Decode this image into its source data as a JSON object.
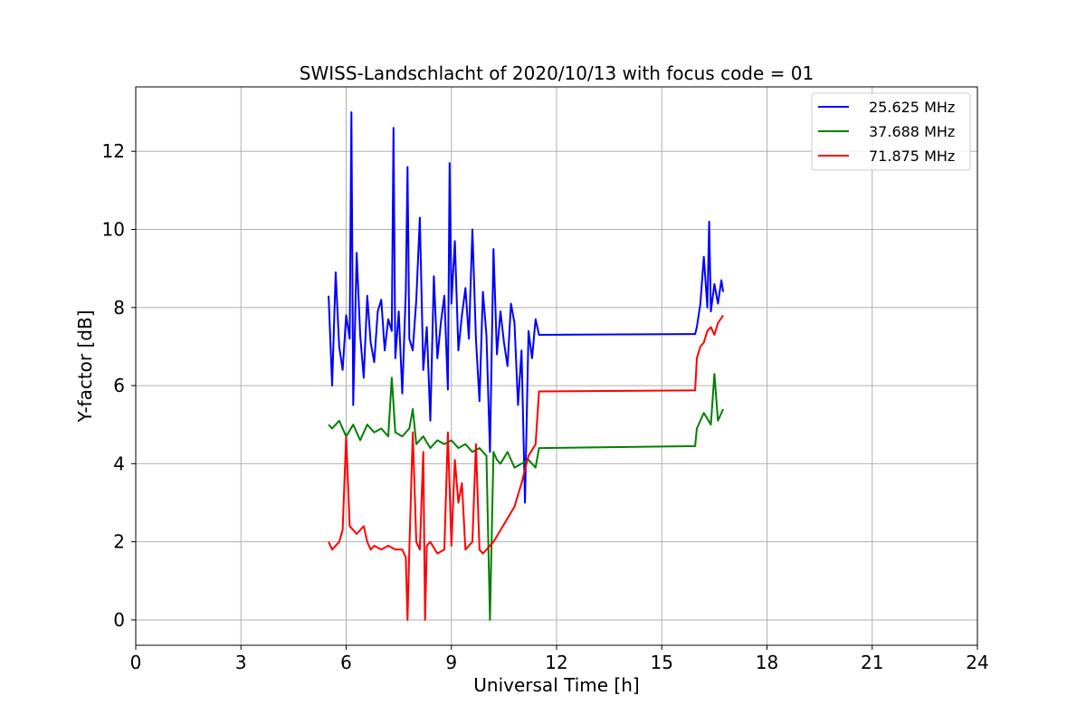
{
  "chart_data": {
    "type": "line",
    "title": "SWISS-Landschlacht of 2020/10/13 with focus code = 01",
    "xlabel": "Universal Time [h]",
    "ylabel": "Y-factor [dB]",
    "xlim": [
      0,
      24
    ],
    "ylim": [
      -0.65,
      13.65
    ],
    "xticks": [
      0,
      3,
      6,
      9,
      12,
      15,
      18,
      21,
      24
    ],
    "xtick_labels": [
      "0",
      "3",
      "6",
      "9",
      "12",
      "15",
      "18",
      "21",
      "24"
    ],
    "yticks": [
      0,
      2,
      4,
      6,
      8,
      10,
      12
    ],
    "ytick_labels": [
      "0",
      "2",
      "4",
      "6",
      "8",
      "10",
      "12"
    ],
    "grid": true,
    "legend_position": "top-right",
    "series": [
      {
        "name": "25.625 MHz",
        "color": "#0000ff",
        "x": [
          5.5,
          5.6,
          5.7,
          5.8,
          5.9,
          6.0,
          6.1,
          6.15,
          6.2,
          6.3,
          6.4,
          6.5,
          6.6,
          6.7,
          6.8,
          6.9,
          7.0,
          7.1,
          7.2,
          7.3,
          7.35,
          7.4,
          7.5,
          7.6,
          7.7,
          7.75,
          7.8,
          7.9,
          8.0,
          8.1,
          8.2,
          8.3,
          8.4,
          8.5,
          8.6,
          8.7,
          8.8,
          8.9,
          8.95,
          9.0,
          9.1,
          9.2,
          9.3,
          9.4,
          9.5,
          9.6,
          9.7,
          9.8,
          9.9,
          10.0,
          10.1,
          10.2,
          10.3,
          10.4,
          10.5,
          10.6,
          10.7,
          10.8,
          10.9,
          11.0,
          11.1,
          11.2,
          11.3,
          11.4,
          11.5,
          15.95,
          16.0,
          16.1,
          16.2,
          16.3,
          16.35,
          16.4,
          16.5,
          16.6,
          16.7,
          16.75
        ],
        "values": [
          8.3,
          6.0,
          8.9,
          7.0,
          6.4,
          7.8,
          7.2,
          13.0,
          5.5,
          9.4,
          7.3,
          6.2,
          8.3,
          7.1,
          6.6,
          7.9,
          8.2,
          6.9,
          7.7,
          7.4,
          12.6,
          6.7,
          7.9,
          5.8,
          8.4,
          11.6,
          7.2,
          6.9,
          8.2,
          10.3,
          6.4,
          7.5,
          5.1,
          8.8,
          6.7,
          7.6,
          8.3,
          5.9,
          11.7,
          8.1,
          9.7,
          6.9,
          7.8,
          8.5,
          7.2,
          10.0,
          7.2,
          5.6,
          8.4,
          7.3,
          4.3,
          9.5,
          6.8,
          7.9,
          7.1,
          6.5,
          8.1,
          7.6,
          5.5,
          6.9,
          3.0,
          7.4,
          6.7,
          7.7,
          7.3,
          7.32,
          7.5,
          8.1,
          9.3,
          8.0,
          10.2,
          7.9,
          8.6,
          8.1,
          8.7,
          8.4
        ]
      },
      {
        "name": "37.688 MHz",
        "color": "#008000",
        "x": [
          5.5,
          5.6,
          5.8,
          6.0,
          6.2,
          6.4,
          6.6,
          6.8,
          7.0,
          7.2,
          7.3,
          7.4,
          7.6,
          7.8,
          7.9,
          8.0,
          8.2,
          8.4,
          8.6,
          8.8,
          9.0,
          9.2,
          9.4,
          9.6,
          9.8,
          10.0,
          10.1,
          10.2,
          10.3,
          10.4,
          10.6,
          10.8,
          11.0,
          11.2,
          11.4,
          11.5,
          15.95,
          16.0,
          16.2,
          16.4,
          16.5,
          16.6,
          16.75
        ],
        "values": [
          5.0,
          4.9,
          5.1,
          4.7,
          5.0,
          4.6,
          5.0,
          4.8,
          4.9,
          4.7,
          6.2,
          4.8,
          4.7,
          4.9,
          5.4,
          4.5,
          4.7,
          4.4,
          4.6,
          4.5,
          4.6,
          4.4,
          4.5,
          4.3,
          4.4,
          4.2,
          0.0,
          4.3,
          4.1,
          4.0,
          4.3,
          3.9,
          4.0,
          4.1,
          3.9,
          4.4,
          4.45,
          4.9,
          5.3,
          5.0,
          6.3,
          5.1,
          5.4
        ]
      },
      {
        "name": "71.875 MHz",
        "color": "#ff0000",
        "x": [
          5.5,
          5.6,
          5.8,
          5.9,
          6.0,
          6.1,
          6.2,
          6.3,
          6.5,
          6.6,
          6.7,
          6.8,
          7.0,
          7.2,
          7.4,
          7.6,
          7.7,
          7.75,
          7.8,
          7.9,
          8.0,
          8.1,
          8.2,
          8.25,
          8.3,
          8.4,
          8.6,
          8.8,
          8.9,
          9.0,
          9.1,
          9.2,
          9.3,
          9.4,
          9.6,
          9.7,
          9.8,
          9.9,
          10.0,
          10.2,
          10.4,
          10.6,
          10.8,
          11.0,
          11.2,
          11.4,
          11.5,
          15.95,
          16.0,
          16.1,
          16.2,
          16.3,
          16.4,
          16.5,
          16.6,
          16.75
        ],
        "values": [
          2.0,
          1.8,
          2.0,
          2.3,
          4.7,
          2.4,
          2.3,
          2.2,
          2.4,
          2.0,
          1.8,
          1.9,
          1.8,
          1.9,
          1.8,
          1.8,
          1.6,
          0.0,
          1.8,
          4.8,
          2.0,
          1.8,
          4.3,
          0.0,
          1.9,
          2.0,
          1.7,
          1.8,
          4.8,
          1.9,
          4.1,
          3.0,
          3.5,
          1.8,
          2.0,
          4.5,
          1.8,
          1.7,
          1.8,
          2.0,
          2.3,
          2.6,
          2.9,
          3.5,
          4.2,
          4.5,
          5.85,
          5.88,
          6.7,
          7.0,
          7.1,
          7.4,
          7.5,
          7.3,
          7.6,
          7.8
        ]
      }
    ]
  }
}
